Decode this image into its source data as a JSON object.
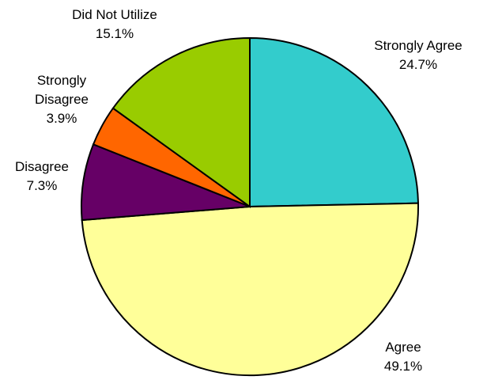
{
  "chart_data": {
    "type": "pie",
    "title": "",
    "start_angle_deg": 0,
    "direction": "clockwise",
    "slices": [
      {
        "label": "Strongly Agree",
        "value": 24.7,
        "value_text": "24.7%",
        "color": "#33CCCC"
      },
      {
        "label": "Agree",
        "value": 49.1,
        "value_text": "49.1%",
        "color": "#FFFF99"
      },
      {
        "label": "Disagree",
        "value": 7.3,
        "value_text": "7.3%",
        "color": "#660066"
      },
      {
        "label": "Strongly\nDisagree",
        "value": 3.9,
        "value_text": "3.9%",
        "color": "#FF6600"
      },
      {
        "label": "Did Not Utilize",
        "value": 15.1,
        "value_text": "15.1%",
        "color": "#99CC00"
      }
    ]
  }
}
